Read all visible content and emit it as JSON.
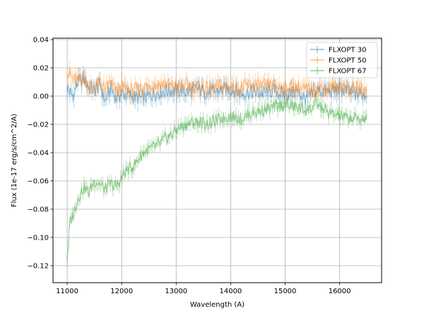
{
  "chart_data": {
    "type": "line",
    "xlabel": "Wavelength (A)",
    "ylabel": "Flux (1e-17 erg/s/cm^2/A)",
    "xlim": [
      10740,
      16770
    ],
    "ylim": [
      -0.132,
      0.041
    ],
    "x_ticks": [
      11000,
      12000,
      13000,
      14000,
      15000,
      16000
    ],
    "x_tick_labels": [
      "11000",
      "12000",
      "13000",
      "14000",
      "15000",
      "16000"
    ],
    "y_ticks": [
      -0.12,
      -0.1,
      -0.08,
      -0.06,
      -0.04,
      -0.02,
      0.0,
      0.02,
      0.04
    ],
    "y_tick_labels": [
      "−0.12",
      "−0.10",
      "−0.08",
      "−0.06",
      "−0.04",
      "−0.02",
      "0.00",
      "0.02",
      "0.04"
    ],
    "grid": true,
    "legend_position": "top-right",
    "series": [
      {
        "name": "FLXOPT 30",
        "color": "#1f77b4",
        "x": [
          11000,
          11100,
          11200,
          11300,
          11400,
          11500,
          11600,
          11700,
          11800,
          11900,
          12000,
          12200,
          12400,
          12600,
          12800,
          13000,
          13200,
          13400,
          13600,
          13800,
          14000,
          14200,
          14400,
          14600,
          14800,
          15000,
          15200,
          15400,
          15600,
          15800,
          16000,
          16200,
          16500
        ],
        "y": [
          0.006,
          0.0,
          0.01,
          0.012,
          0.006,
          0.004,
          0.008,
          -0.004,
          0.006,
          -0.002,
          0.002,
          0.0,
          -0.002,
          0.002,
          0.004,
          0.004,
          0.003,
          0.005,
          0.002,
          0.004,
          0.005,
          0.002,
          0.003,
          0.002,
          0.004,
          0.001,
          0.003,
          -0.002,
          0.004,
          0.003,
          0.005,
          0.002,
          0.001
        ]
      },
      {
        "name": "FLXOPT 50",
        "color": "#ff7f0e",
        "x": [
          11000,
          11100,
          11200,
          11300,
          11400,
          11500,
          11600,
          11700,
          11800,
          11900,
          12000,
          12200,
          12400,
          12600,
          12800,
          13000,
          13200,
          13400,
          13600,
          13800,
          14000,
          14200,
          14400,
          14600,
          14800,
          15000,
          15200,
          15400,
          15600,
          15800,
          16000,
          16200,
          16500
        ],
        "y": [
          0.018,
          0.012,
          0.01,
          0.014,
          0.008,
          0.006,
          0.01,
          0.004,
          0.01,
          0.003,
          0.006,
          0.004,
          0.006,
          0.008,
          0.009,
          0.006,
          0.008,
          0.006,
          0.005,
          0.007,
          0.006,
          0.006,
          0.008,
          0.007,
          0.007,
          0.006,
          0.007,
          0.004,
          0.006,
          0.005,
          0.007,
          0.006,
          0.004
        ]
      },
      {
        "name": "FLXOPT 67",
        "color": "#2ca02c",
        "x": [
          11000,
          11050,
          11100,
          11200,
          11300,
          11400,
          11500,
          11600,
          11700,
          11800,
          11900,
          12000,
          12100,
          12200,
          12300,
          12400,
          12500,
          12600,
          12700,
          12800,
          12900,
          13000,
          13100,
          13200,
          13400,
          13600,
          13800,
          14000,
          14200,
          14400,
          14600,
          14800,
          15000,
          15200,
          15400,
          15600,
          15800,
          16000,
          16200,
          16500
        ],
        "y": [
          -0.115,
          -0.09,
          -0.085,
          -0.072,
          -0.065,
          -0.068,
          -0.06,
          -0.062,
          -0.066,
          -0.062,
          -0.064,
          -0.058,
          -0.052,
          -0.05,
          -0.045,
          -0.04,
          -0.038,
          -0.036,
          -0.034,
          -0.03,
          -0.028,
          -0.024,
          -0.022,
          -0.02,
          -0.018,
          -0.02,
          -0.016,
          -0.014,
          -0.016,
          -0.012,
          -0.01,
          -0.008,
          -0.006,
          -0.008,
          -0.01,
          -0.006,
          -0.012,
          -0.014,
          -0.016,
          -0.016
        ]
      }
    ]
  }
}
